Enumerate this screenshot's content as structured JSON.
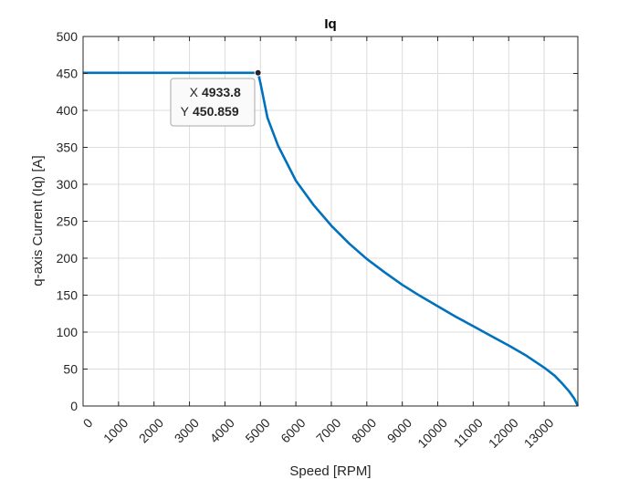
{
  "chart_data": {
    "type": "line",
    "title": "Iq",
    "xlabel": "Speed [RPM]",
    "ylabel": "q-axis Current (Iq) [A]",
    "xlim": [
      0,
      13950
    ],
    "ylim": [
      0,
      500
    ],
    "xticks": [
      "0",
      "1000",
      "2000",
      "3000",
      "4000",
      "5000",
      "6000",
      "7000",
      "8000",
      "9000",
      "10000",
      "11000",
      "12000",
      "13000"
    ],
    "yticks": [
      "0",
      "50",
      "100",
      "150",
      "200",
      "250",
      "300",
      "350",
      "400",
      "450",
      "500"
    ],
    "grid": true,
    "series": [
      {
        "color": "#0072bd",
        "x": [
          0,
          4933.8,
          5000,
          5200,
          5500,
          6000,
          6500,
          7000,
          7500,
          8000,
          8500,
          9000,
          9500,
          10000,
          10500,
          11000,
          11500,
          12000,
          12500,
          13000,
          13300,
          13500,
          13700,
          13850,
          13950
        ],
        "y": [
          450.859,
          450.859,
          437,
          390,
          352,
          305,
          272,
          244,
          220,
          199,
          181,
          164,
          149,
          135,
          121,
          108,
          95,
          82,
          68,
          52,
          41,
          31,
          20,
          10,
          0
        ]
      }
    ],
    "datatip": {
      "x_label": "X",
      "x_value": "4933.8",
      "y_label": "Y",
      "y_value": "450.859",
      "point": [
        4933.8,
        450.859
      ],
      "value_color": "#0096ff"
    }
  }
}
